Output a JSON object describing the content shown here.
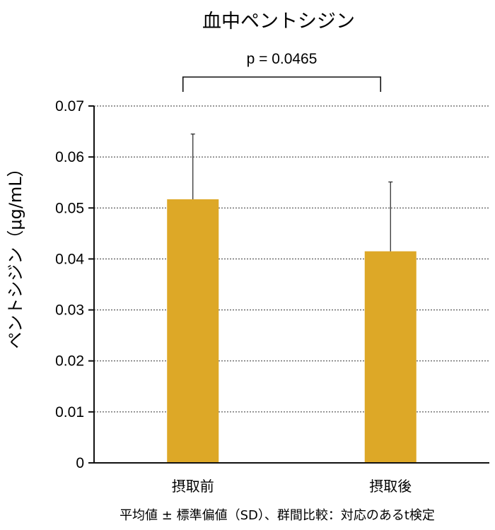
{
  "chart_data": {
    "type": "bar",
    "title": "血中ペントシジン",
    "ylabel": "ペントシジン（μg/mL）",
    "xlabel": "",
    "categories": [
      "摂取前",
      "摂取後"
    ],
    "values": [
      0.0517,
      0.0415
    ],
    "error_bars": [
      0.0128,
      0.0136
    ],
    "ylim": [
      0,
      0.07
    ],
    "yticks": [
      "0",
      "0.01",
      "0.02",
      "0.03",
      "0.04",
      "0.05",
      "0.06",
      "0.07"
    ],
    "grid": true,
    "bar_color": "#DDA827",
    "significance": {
      "label": "p = 0.0465",
      "between": [
        0,
        1
      ]
    },
    "footnote": "平均値 ± 標準偏値（SD）、群間比較：対応のあるt検定"
  }
}
